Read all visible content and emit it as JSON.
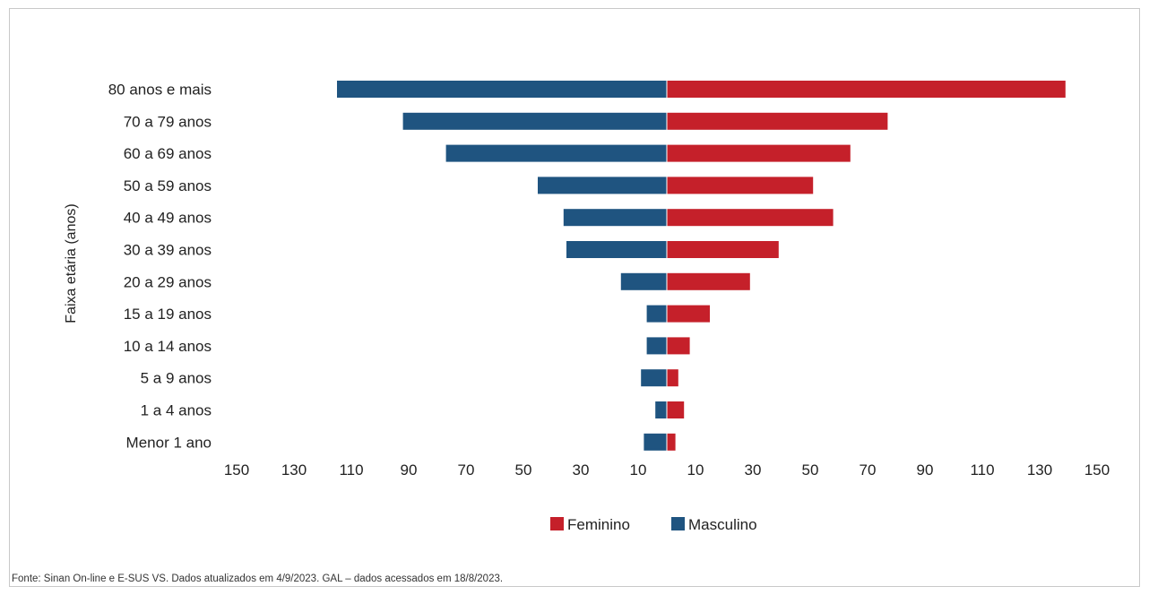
{
  "chart_data": {
    "type": "bar",
    "orientation": "horizontal",
    "subtype": "population-pyramid",
    "categories": [
      "Menor 1 ano",
      "1 a 4 anos",
      "5 a 9 anos",
      "10 a 14 anos",
      "15 a 19 anos",
      "20 a 29 anos",
      "30 a 39 anos",
      "40 a 49 anos",
      "50 a 59 anos",
      "60 a 69 anos",
      "70 a 79 anos",
      "80 anos e mais"
    ],
    "series": [
      {
        "name": "Feminino",
        "side": "right",
        "color": "#c5202a",
        "values": [
          3,
          6,
          4,
          8,
          15,
          29,
          39,
          58,
          51,
          64,
          77,
          139
        ]
      },
      {
        "name": "Masculino",
        "side": "left",
        "color": "#1f5480",
        "values": [
          8,
          4,
          9,
          7,
          7,
          16,
          35,
          36,
          45,
          77,
          92,
          115
        ]
      }
    ],
    "xlabel": "",
    "ylabel": "Faixa etária (anos)",
    "xlim": [
      -150,
      150
    ],
    "x_tick_labels": [
      "150",
      "130",
      "110",
      "90",
      "70",
      "50",
      "30",
      "10",
      "10",
      "30",
      "50",
      "70",
      "90",
      "110",
      "130",
      "150"
    ],
    "x_tick_values": [
      -150,
      -130,
      -110,
      -90,
      -70,
      -50,
      -30,
      -10,
      10,
      30,
      50,
      70,
      90,
      110,
      130,
      150
    ],
    "grid": false,
    "legend_position": "bottom-center",
    "legend": [
      "Feminino",
      "Masculino"
    ]
  },
  "source_note": "Fonte: Sinan On-line e E-SUS VS. Dados atualizados em 4/9/2023. GAL – dados acessados em 18/8/2023."
}
